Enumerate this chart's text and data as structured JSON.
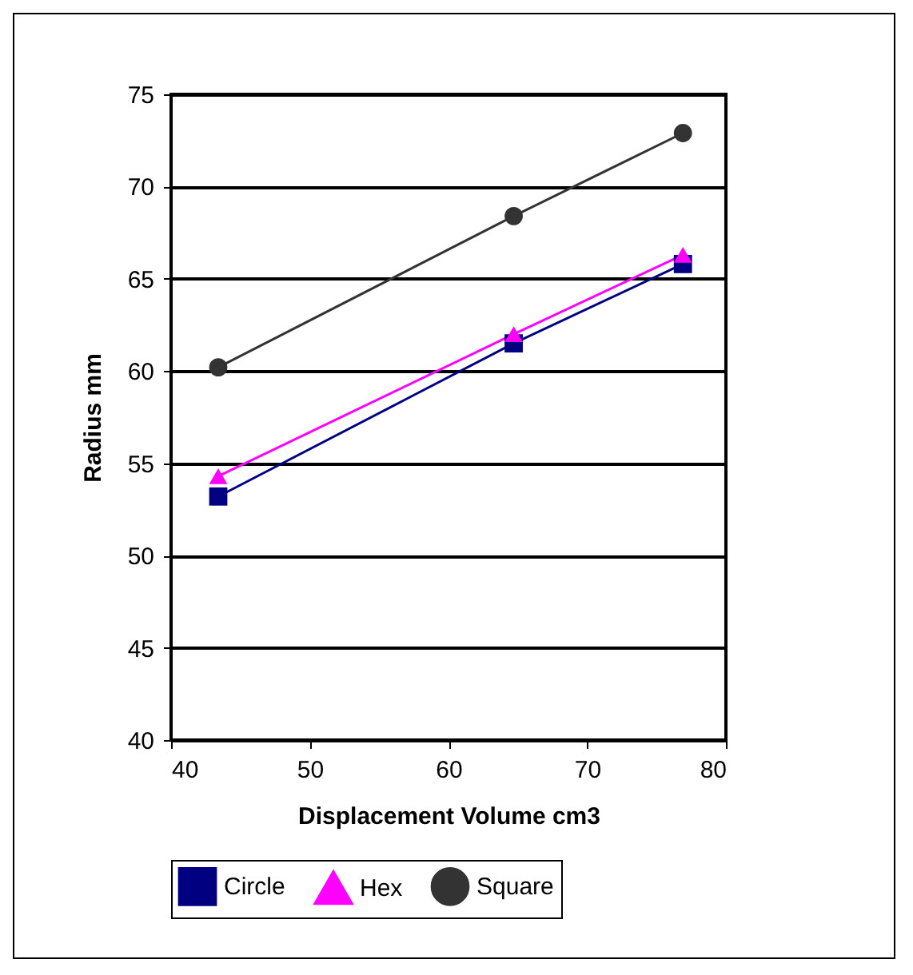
{
  "chart_data": {
    "type": "line",
    "xlabel": "Displacement Volume cm3",
    "ylabel": "Radius mm",
    "x": [
      43.4,
      64.7,
      76.9
    ],
    "series": [
      {
        "name": "Circle",
        "color": "#000080",
        "marker": "square",
        "values": [
          53.2,
          61.5,
          65.8
        ]
      },
      {
        "name": "Hex",
        "color": "#ff00ff",
        "marker": "triangle",
        "values": [
          54.3,
          62.0,
          66.3
        ]
      },
      {
        "name": "Square",
        "color": "#333333",
        "marker": "circle",
        "values": [
          60.2,
          68.4,
          72.9
        ]
      }
    ],
    "xlim": [
      40,
      80
    ],
    "xticks": [
      40,
      50,
      60,
      70,
      80
    ],
    "ylim": [
      40,
      75
    ],
    "yticks": [
      40,
      45,
      50,
      55,
      60,
      65,
      70,
      75
    ],
    "grid": "y",
    "legend": "bottom"
  }
}
